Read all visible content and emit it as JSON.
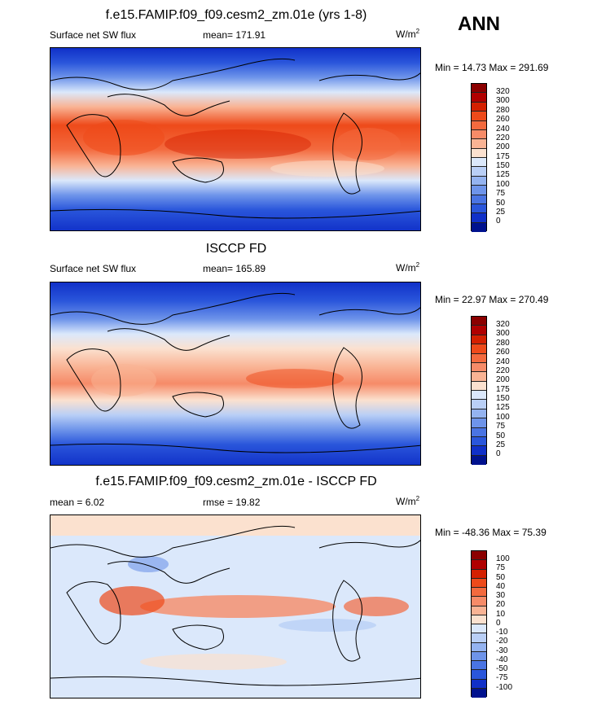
{
  "season": "ANN",
  "panels": [
    {
      "title": "f.e15.FAMIP.f09_f09.cesm2_zm.01e (yrs 1-8)",
      "left_label": "Surface net SW flux",
      "center_label": "mean= 171.91",
      "units": "W/m",
      "units_sup": "2",
      "minmax": "Min =  14.73 Max = 291.69",
      "colorbar_labels": [
        "320",
        "300",
        "280",
        "260",
        "240",
        "220",
        "200",
        "175",
        "150",
        "125",
        "100",
        "75",
        "50",
        "25",
        "0"
      ]
    },
    {
      "title": "ISCCP FD",
      "left_label": "Surface net SW flux",
      "center_label": "mean= 165.89",
      "units": "W/m",
      "units_sup": "2",
      "minmax": "Min =  22.97 Max = 270.49",
      "colorbar_labels": [
        "320",
        "300",
        "280",
        "260",
        "240",
        "220",
        "200",
        "175",
        "150",
        "125",
        "100",
        "75",
        "50",
        "25",
        "0"
      ]
    },
    {
      "title": "f.e15.FAMIP.f09_f09.cesm2_zm.01e - ISCCP FD",
      "left_label": "mean =  6.02",
      "center_label": "rmse =  19.82",
      "units": "W/m",
      "units_sup": "2",
      "minmax": "Min = -48.36 Max =  75.39",
      "colorbar_labels": [
        "100",
        "75",
        "50",
        "40",
        "30",
        "20",
        "10",
        "0",
        "-10",
        "-20",
        "-30",
        "-40",
        "-50",
        "-75",
        "-100"
      ]
    }
  ],
  "colors": {
    "abs_scale": [
      "#8b0000",
      "#b00000",
      "#d42000",
      "#ee4a1a",
      "#f36a3e",
      "#f68b68",
      "#f9b394",
      "#fbe1cf",
      "#dbe8fb",
      "#b9cff6",
      "#94b3f0",
      "#6e94ea",
      "#4a74e3",
      "#2a56db",
      "#1030c8",
      "#00128e"
    ],
    "diff_scale": [
      "#8b0000",
      "#b00000",
      "#d42000",
      "#ee4a1a",
      "#f36a3e",
      "#f68b68",
      "#f9b394",
      "#fbe1cf",
      "#dbe8fb",
      "#b9cff6",
      "#94b3f0",
      "#6e94ea",
      "#4a74e3",
      "#2a56db",
      "#1030c8",
      "#00128e"
    ]
  }
}
